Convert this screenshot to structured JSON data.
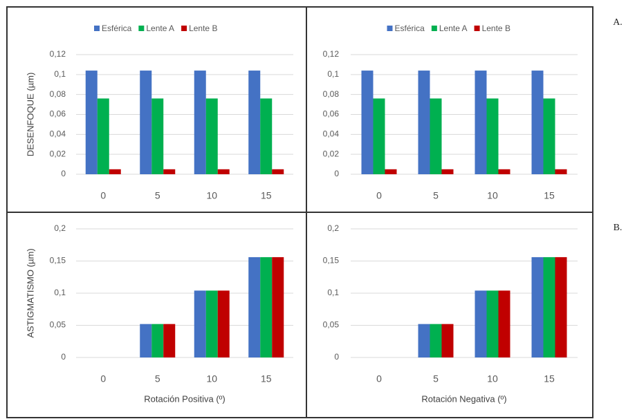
{
  "chart_data": [
    {
      "type": "bar",
      "y_label": "DESENFOQUE (µm)",
      "categories": [
        "0",
        "5",
        "10",
        "15"
      ],
      "series": [
        {
          "name": "Esférica",
          "color": "#4472c4",
          "values": [
            0.104,
            0.104,
            0.104,
            0.104
          ]
        },
        {
          "name": "Lente A",
          "color": "#00b050",
          "values": [
            0.076,
            0.076,
            0.076,
            0.076
          ]
        },
        {
          "name": "Lente B",
          "color": "#c00000",
          "values": [
            0.005,
            0.005,
            0.005,
            0.005
          ]
        }
      ],
      "ylim": [
        0,
        0.12
      ],
      "yticks": [
        0,
        {
          "value": 0.02,
          "label": "0,02"
        },
        {
          "value": 0.04,
          "label": "0,04"
        },
        {
          "value": 0.06,
          "label": "0,06"
        },
        {
          "value": 0.08,
          "label": "0,08"
        },
        {
          "value": 0.1,
          "label": "0,1"
        },
        {
          "value": 0.12,
          "label": "0,12"
        }
      ],
      "grid": true,
      "legend": "top"
    },
    {
      "type": "bar",
      "panel_label": "A.",
      "categories": [
        "0",
        "5",
        "10",
        "15"
      ],
      "series": [
        {
          "name": "Esférica",
          "color": "#4472c4",
          "values": [
            0.104,
            0.104,
            0.104,
            0.104
          ]
        },
        {
          "name": "Lente A",
          "color": "#00b050",
          "values": [
            0.076,
            0.076,
            0.076,
            0.076
          ]
        },
        {
          "name": "Lente B",
          "color": "#c00000",
          "values": [
            0.005,
            0.005,
            0.005,
            0.005
          ]
        }
      ],
      "ylim": [
        0,
        0.12
      ],
      "yticks": [
        0,
        {
          "value": 0.02,
          "label": "0,02"
        },
        {
          "value": 0.04,
          "label": "0,04"
        },
        {
          "value": 0.06,
          "label": "0,06"
        },
        {
          "value": 0.08,
          "label": "0,08"
        },
        {
          "value": 0.1,
          "label": "0,1"
        },
        {
          "value": 0.12,
          "label": "0,12"
        }
      ],
      "grid": true,
      "legend": "top"
    },
    {
      "type": "bar",
      "y_label": "ASTIGMATISMO (µm)",
      "x_label": "Rotación Positiva (º)",
      "categories": [
        "0",
        "5",
        "10",
        "15"
      ],
      "series": [
        {
          "color": "#4472c4",
          "values": [
            0,
            0.052,
            0.104,
            0.156
          ]
        },
        {
          "color": "#00b050",
          "values": [
            0,
            0.052,
            0.104,
            0.156
          ]
        },
        {
          "color": "#c00000",
          "values": [
            0,
            0.052,
            0.104,
            0.156
          ]
        }
      ],
      "ylim": [
        0,
        0.2
      ],
      "yticks": [
        0,
        {
          "value": 0.05,
          "label": "0,05"
        },
        {
          "value": 0.1,
          "label": "0,1"
        },
        {
          "value": 0.15,
          "label": "0,15"
        },
        {
          "value": 0.2,
          "label": "0,2"
        }
      ],
      "grid": true
    },
    {
      "type": "bar",
      "panel_label": "B.",
      "x_label": "Rotación Negativa (º)",
      "categories": [
        "0",
        "5",
        "10",
        "15"
      ],
      "series": [
        {
          "color": "#4472c4",
          "values": [
            0,
            0.052,
            0.104,
            0.156
          ]
        },
        {
          "color": "#00b050",
          "values": [
            0,
            0.052,
            0.104,
            0.156
          ]
        },
        {
          "color": "#c00000",
          "values": [
            0,
            0.052,
            0.104,
            0.156
          ]
        }
      ],
      "ylim": [
        0,
        0.2
      ],
      "yticks": [
        0,
        {
          "value": 0.05,
          "label": "0,05"
        },
        {
          "value": 0.1,
          "label": "0,1"
        },
        {
          "value": 0.15,
          "label": "0,15"
        },
        {
          "value": 0.2,
          "label": "0,2"
        }
      ],
      "grid": true
    }
  ]
}
